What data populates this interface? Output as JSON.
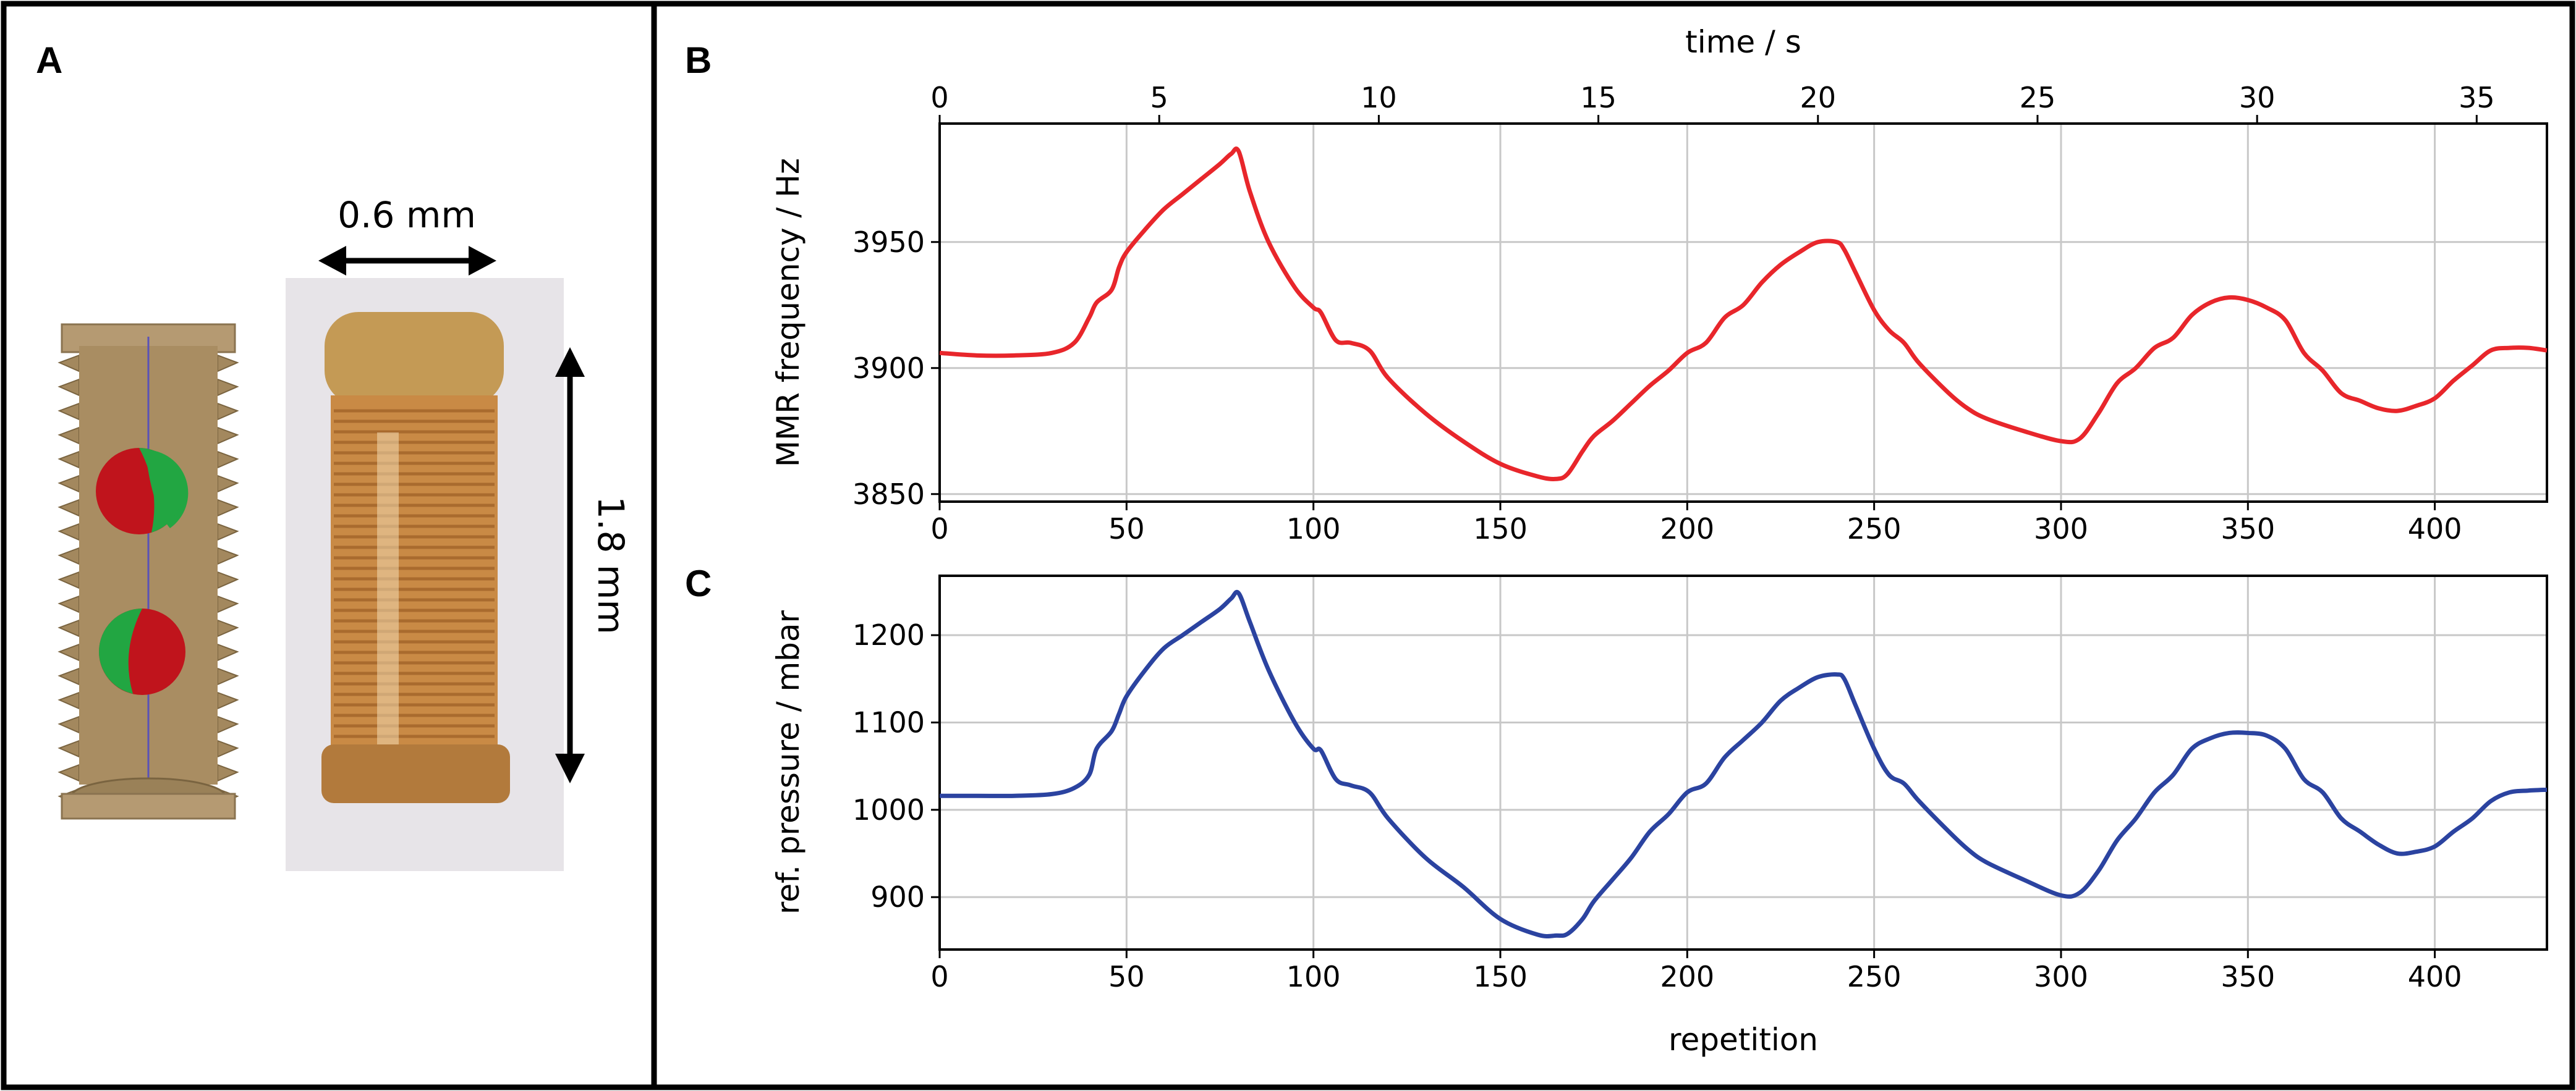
{
  "panels": {
    "a": "A",
    "b": "B",
    "c": "C"
  },
  "panel_a": {
    "width_label": "0.6 mm",
    "length_label": "1.8 mm",
    "colors": {
      "gold": "#b59a72",
      "red": "#c0141c",
      "green": "#22a642",
      "photo_bg": "#e7e4e8",
      "copper": "#c98a45"
    }
  },
  "colors": {
    "series_b": "#e8262b",
    "series_c": "#2b43a0",
    "grid": "#c8c8c8"
  },
  "chart_data": [
    {
      "type": "line",
      "panel": "B",
      "xlabel_top": "time / s",
      "xlabel": "",
      "ylabel": "MMR frequency / Hz",
      "xlim": [
        0,
        430
      ],
      "ylim": [
        3847,
        3997
      ],
      "top_axis_lim": [
        0,
        36.6
      ],
      "x_ticks": [
        0,
        50,
        100,
        150,
        200,
        250,
        300,
        350,
        400
      ],
      "x_tick_labels": [
        "0",
        "50",
        "100",
        "150",
        "200",
        "250",
        "300",
        "350",
        "400"
      ],
      "y_ticks": [
        3850,
        3900,
        3950
      ],
      "y_tick_labels": [
        "3850",
        "3900",
        "3950"
      ],
      "top_ticks": [
        0,
        5,
        10,
        15,
        20,
        25,
        30,
        35
      ],
      "top_tick_labels": [
        "0",
        "5",
        "10",
        "15",
        "20",
        "25",
        "30",
        "35"
      ],
      "grid": true,
      "series": [
        {
          "x": [
            0,
            10,
            20,
            30,
            36,
            40,
            42,
            46,
            48,
            50,
            55,
            60,
            65,
            70,
            75,
            78,
            80,
            83,
            88,
            95,
            100,
            102,
            106,
            110,
            115,
            120,
            130,
            140,
            150,
            160,
            165,
            168,
            172,
            175,
            180,
            185,
            190,
            195,
            200,
            205,
            210,
            215,
            220,
            225,
            230,
            235,
            240,
            242,
            245,
            250,
            254,
            258,
            262,
            270,
            275,
            280,
            290,
            300,
            305,
            310,
            315,
            320,
            325,
            330,
            335,
            340,
            345,
            350,
            355,
            360,
            365,
            370,
            375,
            380,
            385,
            390,
            395,
            400,
            405,
            410,
            415,
            420,
            425,
            430
          ],
          "y": [
            3906,
            3905,
            3905,
            3906,
            3910,
            3920,
            3926,
            3931,
            3940,
            3946,
            3955,
            3963,
            3969,
            3975,
            3981,
            3985,
            3986,
            3970,
            3950,
            3932,
            3924,
            3922,
            3911,
            3910,
            3907,
            3896,
            3882,
            3871,
            3862,
            3857,
            3856,
            3858,
            3867,
            3873,
            3879,
            3886,
            3893,
            3899,
            3906,
            3910,
            3920,
            3925,
            3934,
            3941,
            3946,
            3950,
            3950,
            3947,
            3938,
            3923,
            3915,
            3910,
            3902,
            3890,
            3884,
            3880,
            3875,
            3871,
            3872,
            3882,
            3894,
            3900,
            3908,
            3912,
            3921,
            3926,
            3928,
            3927,
            3924,
            3919,
            3906,
            3899,
            3890,
            3887,
            3884,
            3883,
            3885,
            3888,
            3895,
            3901,
            3907,
            3908,
            3908,
            3907
          ]
        }
      ]
    },
    {
      "type": "line",
      "panel": "C",
      "xlabel": "repetition",
      "ylabel": "ref. pressure / mbar",
      "xlim": [
        0,
        430
      ],
      "ylim": [
        840,
        1268
      ],
      "x_ticks": [
        0,
        50,
        100,
        150,
        200,
        250,
        300,
        350,
        400
      ],
      "x_tick_labels": [
        "0",
        "50",
        "100",
        "150",
        "200",
        "250",
        "300",
        "350",
        "400"
      ],
      "y_ticks": [
        900,
        1000,
        1100,
        1200
      ],
      "y_tick_labels": [
        "900",
        "1000",
        "1100",
        "1200"
      ],
      "grid": true,
      "series": [
        {
          "x": [
            0,
            10,
            20,
            30,
            36,
            40,
            42,
            46,
            48,
            50,
            55,
            60,
            65,
            70,
            75,
            78,
            80,
            83,
            88,
            95,
            100,
            102,
            106,
            110,
            115,
            120,
            130,
            140,
            150,
            160,
            165,
            168,
            172,
            175,
            180,
            185,
            190,
            195,
            200,
            205,
            210,
            215,
            220,
            225,
            230,
            235,
            240,
            242,
            245,
            250,
            254,
            258,
            262,
            270,
            275,
            280,
            290,
            300,
            305,
            310,
            315,
            320,
            325,
            330,
            335,
            340,
            345,
            350,
            355,
            360,
            365,
            370,
            375,
            380,
            385,
            390,
            395,
            400,
            405,
            410,
            415,
            420,
            425,
            430
          ],
          "y": [
            1016,
            1016,
            1016,
            1018,
            1025,
            1040,
            1070,
            1090,
            1110,
            1130,
            1160,
            1185,
            1200,
            1215,
            1230,
            1242,
            1248,
            1215,
            1160,
            1100,
            1070,
            1068,
            1035,
            1028,
            1020,
            990,
            945,
            912,
            875,
            857,
            856,
            858,
            875,
            895,
            920,
            945,
            975,
            995,
            1020,
            1030,
            1060,
            1080,
            1100,
            1125,
            1140,
            1152,
            1155,
            1150,
            1120,
            1070,
            1040,
            1030,
            1010,
            975,
            955,
            940,
            920,
            902,
            905,
            930,
            965,
            990,
            1020,
            1040,
            1070,
            1082,
            1088,
            1088,
            1085,
            1070,
            1035,
            1020,
            990,
            975,
            960,
            950,
            952,
            958,
            975,
            990,
            1010,
            1020,
            1022,
            1023
          ]
        }
      ]
    }
  ]
}
